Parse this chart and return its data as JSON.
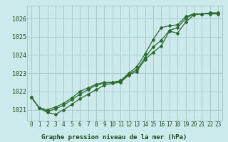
{
  "title": "Graphe pression niveau de la mer (hPa)",
  "background_color": "#cce9ec",
  "grid_color": "#aacccc",
  "line_color": "#2d6a2d",
  "x_ticks": [
    0,
    1,
    2,
    3,
    4,
    5,
    6,
    7,
    8,
    9,
    10,
    11,
    12,
    13,
    14,
    15,
    16,
    17,
    18,
    19,
    20,
    21,
    22,
    23
  ],
  "y_ticks": [
    1021,
    1022,
    1023,
    1024,
    1025,
    1026
  ],
  "ylim": [
    1020.4,
    1026.7
  ],
  "xlim": [
    -0.5,
    23.5
  ],
  "series1": [
    1021.7,
    1021.1,
    1020.85,
    1020.75,
    1021.0,
    1021.3,
    1021.6,
    1021.85,
    1022.1,
    1022.35,
    1022.45,
    1022.5,
    1022.9,
    1023.1,
    1023.75,
    1024.15,
    1024.5,
    1025.3,
    1025.2,
    1025.8,
    1026.2,
    1026.25,
    1026.25,
    1026.25
  ],
  "series2": [
    1021.7,
    1021.1,
    1020.9,
    1021.05,
    1021.25,
    1021.55,
    1021.85,
    1022.1,
    1022.35,
    1022.45,
    1022.5,
    1022.55,
    1022.95,
    1023.2,
    1023.85,
    1024.45,
    1024.8,
    1025.35,
    1025.5,
    1026.0,
    1026.25,
    1026.25,
    1026.3,
    1026.3
  ],
  "series3": [
    1021.7,
    1021.1,
    1021.0,
    1021.15,
    1021.35,
    1021.65,
    1022.0,
    1022.2,
    1022.4,
    1022.5,
    1022.5,
    1022.6,
    1023.0,
    1023.35,
    1024.05,
    1024.85,
    1025.5,
    1025.6,
    1025.65,
    1026.1,
    1026.25,
    1026.25,
    1026.3,
    1026.3
  ],
  "tick_fontsize": 5.5,
  "xlabel_fontsize": 6.5
}
